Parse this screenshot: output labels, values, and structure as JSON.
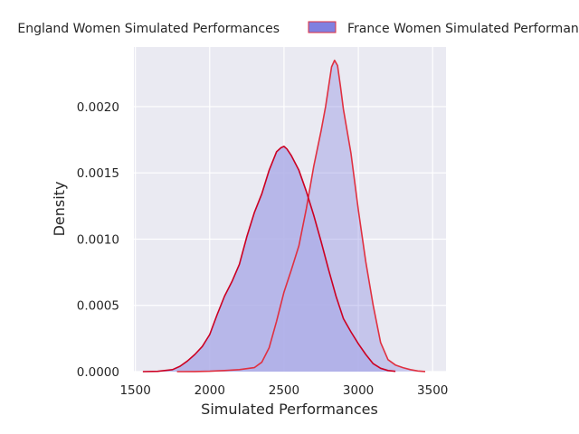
{
  "chart_data": {
    "type": "area",
    "title": "",
    "xlabel": "Simulated Performances",
    "ylabel": "Density",
    "xlim": [
      1490,
      3590
    ],
    "ylim": [
      0,
      0.00245
    ],
    "xticks": [
      1500,
      2000,
      2500,
      3000,
      3500
    ],
    "xtick_labels": [
      "1500",
      "2000",
      "2500",
      "3000",
      "3500"
    ],
    "yticks": [
      0,
      0.0005,
      0.001,
      0.0015,
      0.002
    ],
    "ytick_labels": [
      "0.0000",
      "0.0005",
      "0.0010",
      "0.0015",
      "0.0020"
    ],
    "grid": true,
    "legend_position": "top-center-outside",
    "series": [
      {
        "name": "England Women Simulated Performances",
        "fill_color": "#aeaee8",
        "line_color": "#cc0022",
        "x": [
          1550,
          1650,
          1750,
          1800,
          1850,
          1900,
          1950,
          2000,
          2050,
          2100,
          2150,
          2200,
          2250,
          2300,
          2350,
          2400,
          2450,
          2480,
          2500,
          2520,
          2550,
          2600,
          2650,
          2700,
          2750,
          2800,
          2850,
          2900,
          2950,
          3000,
          3050,
          3100,
          3150,
          3200,
          3250
        ],
        "y": [
          0,
          2e-06,
          1.5e-05,
          4e-05,
          8e-05,
          0.00013,
          0.00019,
          0.00028,
          0.00043,
          0.00057,
          0.00068,
          0.00081,
          0.00102,
          0.0012,
          0.00134,
          0.00152,
          0.00166,
          0.00169,
          0.0017,
          0.00168,
          0.00163,
          0.00152,
          0.00136,
          0.00118,
          0.00098,
          0.00077,
          0.00057,
          0.0004,
          0.0003,
          0.00021,
          0.00013,
          6e-05,
          2.5e-05,
          8e-06,
          2e-06
        ]
      },
      {
        "name": "France Women Simulated Performances",
        "fill_color": "#8080e0",
        "line_color": "#e03040",
        "x": [
          1780,
          1900,
          2000,
          2100,
          2200,
          2300,
          2350,
          2400,
          2450,
          2500,
          2550,
          2600,
          2650,
          2700,
          2750,
          2780,
          2800,
          2820,
          2840,
          2860,
          2880,
          2900,
          2950,
          3000,
          3050,
          3100,
          3150,
          3200,
          3250,
          3300,
          3350,
          3400,
          3450
        ],
        "y": [
          0,
          1e-06,
          3e-06,
          8e-06,
          1.5e-05,
          3e-05,
          7e-05,
          0.00018,
          0.00038,
          0.0006,
          0.00077,
          0.00095,
          0.00123,
          0.00155,
          0.00182,
          0.002,
          0.00215,
          0.0023,
          0.00235,
          0.00231,
          0.00215,
          0.00198,
          0.00165,
          0.00122,
          0.00083,
          0.0005,
          0.00022,
          9e-05,
          5e-05,
          3e-05,
          1.5e-05,
          5e-06,
          1e-06
        ]
      }
    ]
  }
}
